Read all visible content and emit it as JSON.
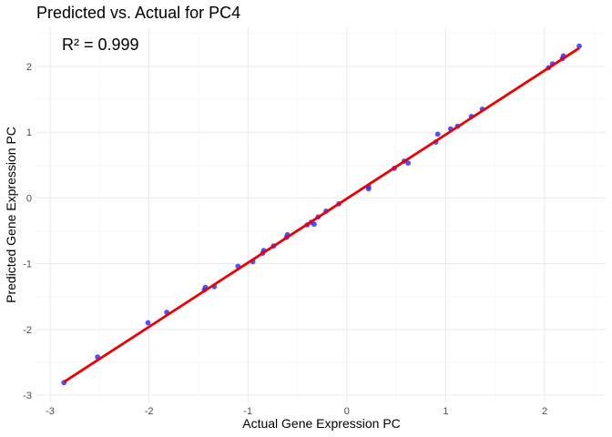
{
  "chart_data": {
    "type": "scatter",
    "title": "Predicted vs. Actual for PC4",
    "xlabel": "Actual Gene Expression PC",
    "ylabel": "Predicted Gene Expression PC",
    "annotation": "R² = 0.999",
    "xlim": [
      -3,
      2.5
    ],
    "ylim": [
      -3,
      2.5
    ],
    "x_ticks": [
      -3,
      -2,
      -1,
      0,
      1,
      2
    ],
    "y_ticks": [
      -3,
      -2,
      -1,
      0,
      1,
      2
    ],
    "x_tick_labels": [
      "-3",
      "-2",
      "-1",
      "0",
      "1",
      "2"
    ],
    "y_tick_labels": [
      "-3",
      "-2",
      "-1",
      "0",
      "1",
      "2"
    ],
    "grid": true,
    "point_color": "#3333ff",
    "line_color": "#ee0000",
    "points": [
      {
        "x": -2.86,
        "y": -2.81
      },
      {
        "x": -2.52,
        "y": -2.42
      },
      {
        "x": -2.01,
        "y": -1.9
      },
      {
        "x": -1.82,
        "y": -1.74
      },
      {
        "x": -1.44,
        "y": -1.4
      },
      {
        "x": -1.43,
        "y": -1.36
      },
      {
        "x": -1.34,
        "y": -1.35
      },
      {
        "x": -1.1,
        "y": -1.04
      },
      {
        "x": -0.95,
        "y": -0.97
      },
      {
        "x": -0.85,
        "y": -0.84
      },
      {
        "x": -0.84,
        "y": -0.8
      },
      {
        "x": -0.74,
        "y": -0.73
      },
      {
        "x": -0.61,
        "y": -0.6
      },
      {
        "x": -0.6,
        "y": -0.56
      },
      {
        "x": -0.4,
        "y": -0.41
      },
      {
        "x": -0.36,
        "y": -0.37
      },
      {
        "x": -0.33,
        "y": -0.4
      },
      {
        "x": -0.29,
        "y": -0.29
      },
      {
        "x": -0.21,
        "y": -0.2
      },
      {
        "x": -0.08,
        "y": -0.09
      },
      {
        "x": 0.22,
        "y": 0.14
      },
      {
        "x": 0.22,
        "y": 0.17
      },
      {
        "x": 0.48,
        "y": 0.45
      },
      {
        "x": 0.58,
        "y": 0.56
      },
      {
        "x": 0.62,
        "y": 0.53
      },
      {
        "x": 0.9,
        "y": 0.85
      },
      {
        "x": 0.92,
        "y": 0.97
      },
      {
        "x": 1.05,
        "y": 1.05
      },
      {
        "x": 1.12,
        "y": 1.09
      },
      {
        "x": 1.26,
        "y": 1.24
      },
      {
        "x": 1.37,
        "y": 1.35
      },
      {
        "x": 2.04,
        "y": 1.98
      },
      {
        "x": 2.08,
        "y": 2.04
      },
      {
        "x": 2.18,
        "y": 2.12
      },
      {
        "x": 2.19,
        "y": 2.16
      },
      {
        "x": 2.35,
        "y": 2.31
      }
    ],
    "fit_line": {
      "x": [
        -2.86,
        2.35
      ],
      "y": [
        -2.8,
        2.28
      ]
    }
  }
}
